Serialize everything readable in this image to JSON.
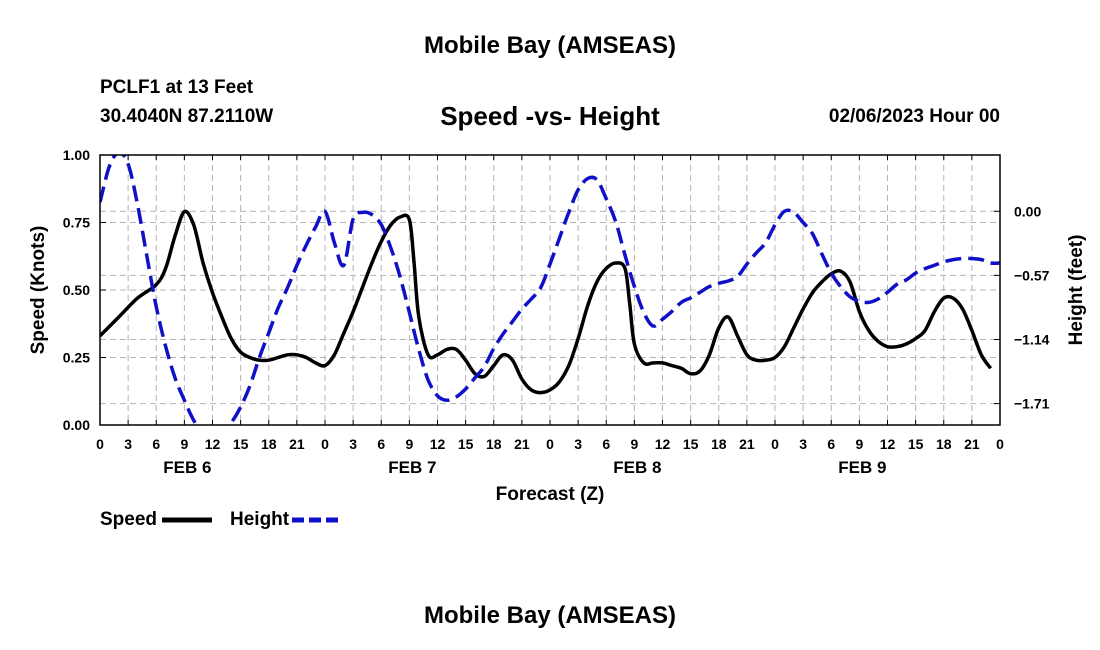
{
  "header": {
    "title": "Mobile Bay (AMSEAS)",
    "station": "PCLF1 at 13 Feet",
    "coords": "30.4040N  87.2110W",
    "subtitle": "Speed -vs- Height",
    "datetime": "02/06/2023 Hour 00"
  },
  "footer": {
    "title": "Mobile Bay (AMSEAS)"
  },
  "colors": {
    "speed": "#000000",
    "height": "#1010c8",
    "grid": "#b4b4b4"
  },
  "chart_data": {
    "type": "line",
    "title": "Speed -vs- Height",
    "xlabel": "Forecast (Z)",
    "ylabel": "Speed (Knots)",
    "y2label": "Height (feet)",
    "x_unit": "hours since 02/06/2023 00Z",
    "xlim": [
      0,
      96
    ],
    "ylim": [
      0,
      1
    ],
    "y2lim": [
      -1.9,
      0.5
    ],
    "x_tick_labels": [
      "0",
      "3",
      "6",
      "9",
      "12",
      "15",
      "18",
      "21",
      "0",
      "3",
      "6",
      "9",
      "12",
      "15",
      "18",
      "21",
      "0",
      "3",
      "6",
      "9",
      "12",
      "15",
      "18",
      "21",
      "0",
      "3",
      "6",
      "9",
      "12",
      "15",
      "18",
      "21",
      "0"
    ],
    "day_labels": [
      "FEB 6",
      "FEB 7",
      "FEB 8",
      "FEB 9"
    ],
    "y_ticks": [
      "1.00",
      "0.75",
      "0.50",
      "0.25",
      "0.00"
    ],
    "y2_ticks": [
      "0.00",
      "−0.57",
      "−1.14",
      "−1.71"
    ],
    "legend": [
      {
        "label": "Speed",
        "style": "solid"
      },
      {
        "label": "Height",
        "style": "dashed"
      }
    ],
    "series": [
      {
        "name": "Speed",
        "axis": "left",
        "style": "solid",
        "points": [
          [
            0,
            0.33
          ],
          [
            2,
            0.4
          ],
          [
            4,
            0.47
          ],
          [
            6,
            0.52
          ],
          [
            7,
            0.58
          ],
          [
            8,
            0.7
          ],
          [
            9,
            0.79
          ],
          [
            10,
            0.74
          ],
          [
            11,
            0.6
          ],
          [
            12,
            0.49
          ],
          [
            13,
            0.4
          ],
          [
            14,
            0.32
          ],
          [
            15,
            0.27
          ],
          [
            16,
            0.25
          ],
          [
            17,
            0.24
          ],
          [
            18,
            0.24
          ],
          [
            19,
            0.25
          ],
          [
            20,
            0.26
          ],
          [
            21,
            0.26
          ],
          [
            22,
            0.25
          ],
          [
            23,
            0.23
          ],
          [
            24,
            0.22
          ],
          [
            25,
            0.26
          ],
          [
            26,
            0.34
          ],
          [
            27,
            0.42
          ],
          [
            28,
            0.51
          ],
          [
            29,
            0.6
          ],
          [
            30,
            0.68
          ],
          [
            31,
            0.74
          ],
          [
            32,
            0.77
          ],
          [
            33,
            0.76
          ],
          [
            33.5,
            0.6
          ],
          [
            34,
            0.4
          ],
          [
            35,
            0.26
          ],
          [
            36,
            0.26
          ],
          [
            37,
            0.28
          ],
          [
            38,
            0.28
          ],
          [
            39,
            0.24
          ],
          [
            40,
            0.19
          ],
          [
            41,
            0.18
          ],
          [
            42,
            0.22
          ],
          [
            43,
            0.26
          ],
          [
            44,
            0.24
          ],
          [
            45,
            0.17
          ],
          [
            46,
            0.13
          ],
          [
            47,
            0.12
          ],
          [
            48,
            0.13
          ],
          [
            49,
            0.16
          ],
          [
            50,
            0.22
          ],
          [
            51,
            0.32
          ],
          [
            52,
            0.44
          ],
          [
            53,
            0.53
          ],
          [
            54,
            0.58
          ],
          [
            55,
            0.6
          ],
          [
            56,
            0.58
          ],
          [
            56.5,
            0.45
          ],
          [
            57,
            0.3
          ],
          [
            58,
            0.23
          ],
          [
            59,
            0.23
          ],
          [
            60,
            0.23
          ],
          [
            61,
            0.22
          ],
          [
            62,
            0.21
          ],
          [
            63,
            0.19
          ],
          [
            64,
            0.2
          ],
          [
            65,
            0.26
          ],
          [
            66,
            0.36
          ],
          [
            67,
            0.4
          ],
          [
            68,
            0.33
          ],
          [
            69,
            0.26
          ],
          [
            70,
            0.24
          ],
          [
            71,
            0.24
          ],
          [
            72,
            0.25
          ],
          [
            73,
            0.29
          ],
          [
            74,
            0.36
          ],
          [
            75,
            0.43
          ],
          [
            76,
            0.49
          ],
          [
            77,
            0.53
          ],
          [
            78,
            0.56
          ],
          [
            79,
            0.57
          ],
          [
            80,
            0.53
          ],
          [
            81,
            0.42
          ],
          [
            82,
            0.35
          ],
          [
            83,
            0.31
          ],
          [
            84,
            0.29
          ],
          [
            85,
            0.29
          ],
          [
            86,
            0.3
          ],
          [
            87,
            0.32
          ],
          [
            88,
            0.35
          ],
          [
            89,
            0.42
          ],
          [
            90,
            0.47
          ],
          [
            91,
            0.47
          ],
          [
            92,
            0.43
          ],
          [
            93,
            0.35
          ],
          [
            94,
            0.26
          ],
          [
            95,
            0.21
          ]
        ]
      },
      {
        "name": "Height",
        "axis": "right",
        "style": "dashed",
        "points": [
          [
            0,
            0.08
          ],
          [
            1,
            0.4
          ],
          [
            2,
            0.52
          ],
          [
            3,
            0.42
          ],
          [
            4,
            0.06
          ],
          [
            5,
            -0.4
          ],
          [
            6,
            -0.85
          ],
          [
            7,
            -1.2
          ],
          [
            8,
            -1.48
          ],
          [
            9,
            -1.68
          ],
          [
            10,
            -1.86
          ],
          [
            11,
            -1.98
          ],
          [
            12,
            -2.03
          ],
          [
            13,
            -1.98
          ],
          [
            14,
            -1.88
          ],
          [
            15,
            -1.74
          ],
          [
            16,
            -1.55
          ],
          [
            17,
            -1.3
          ],
          [
            18,
            -1.08
          ],
          [
            19,
            -0.86
          ],
          [
            20,
            -0.68
          ],
          [
            21,
            -0.48
          ],
          [
            22,
            -0.3
          ],
          [
            23,
            -0.14
          ],
          [
            24,
            0.0
          ],
          [
            25,
            -0.28
          ],
          [
            26,
            -0.48
          ],
          [
            27,
            -0.07
          ],
          [
            28,
            -0.01
          ],
          [
            29,
            -0.03
          ],
          [
            30,
            -0.12
          ],
          [
            31,
            -0.32
          ],
          [
            32,
            -0.58
          ],
          [
            33,
            -0.9
          ],
          [
            34,
            -1.23
          ],
          [
            35,
            -1.5
          ],
          [
            36,
            -1.64
          ],
          [
            37,
            -1.68
          ],
          [
            38,
            -1.65
          ],
          [
            39,
            -1.58
          ],
          [
            40,
            -1.48
          ],
          [
            41,
            -1.38
          ],
          [
            42,
            -1.22
          ],
          [
            43,
            -1.09
          ],
          [
            44,
            -0.98
          ],
          [
            45,
            -0.87
          ],
          [
            46,
            -0.78
          ],
          [
            47,
            -0.68
          ],
          [
            48,
            -0.47
          ],
          [
            49,
            -0.24
          ],
          [
            50,
            -0.01
          ],
          [
            51,
            0.19
          ],
          [
            52,
            0.29
          ],
          [
            53,
            0.28
          ],
          [
            54,
            0.11
          ],
          [
            55,
            -0.09
          ],
          [
            56,
            -0.39
          ],
          [
            57,
            -0.67
          ],
          [
            58,
            -0.9
          ],
          [
            59,
            -1.02
          ],
          [
            60,
            -0.96
          ],
          [
            61,
            -0.89
          ],
          [
            62,
            -0.81
          ],
          [
            63,
            -0.77
          ],
          [
            64,
            -0.72
          ],
          [
            65,
            -0.67
          ],
          [
            66,
            -0.64
          ],
          [
            67,
            -0.62
          ],
          [
            68,
            -0.58
          ],
          [
            69,
            -0.47
          ],
          [
            70,
            -0.37
          ],
          [
            71,
            -0.28
          ],
          [
            72,
            -0.12
          ],
          [
            73,
            0.0
          ],
          [
            74,
            -0.01
          ],
          [
            75,
            -0.1
          ],
          [
            76,
            -0.2
          ],
          [
            77,
            -0.38
          ],
          [
            78,
            -0.55
          ],
          [
            79,
            -0.67
          ],
          [
            80,
            -0.76
          ],
          [
            81,
            -0.8
          ],
          [
            82,
            -0.81
          ],
          [
            83,
            -0.78
          ],
          [
            84,
            -0.72
          ],
          [
            85,
            -0.65
          ],
          [
            86,
            -0.61
          ],
          [
            87,
            -0.55
          ],
          [
            88,
            -0.51
          ],
          [
            89,
            -0.48
          ],
          [
            90,
            -0.45
          ],
          [
            91,
            -0.43
          ],
          [
            92,
            -0.42
          ],
          [
            93,
            -0.42
          ],
          [
            94,
            -0.43
          ],
          [
            95,
            -0.46
          ],
          [
            96,
            -0.46
          ]
        ]
      }
    ]
  }
}
